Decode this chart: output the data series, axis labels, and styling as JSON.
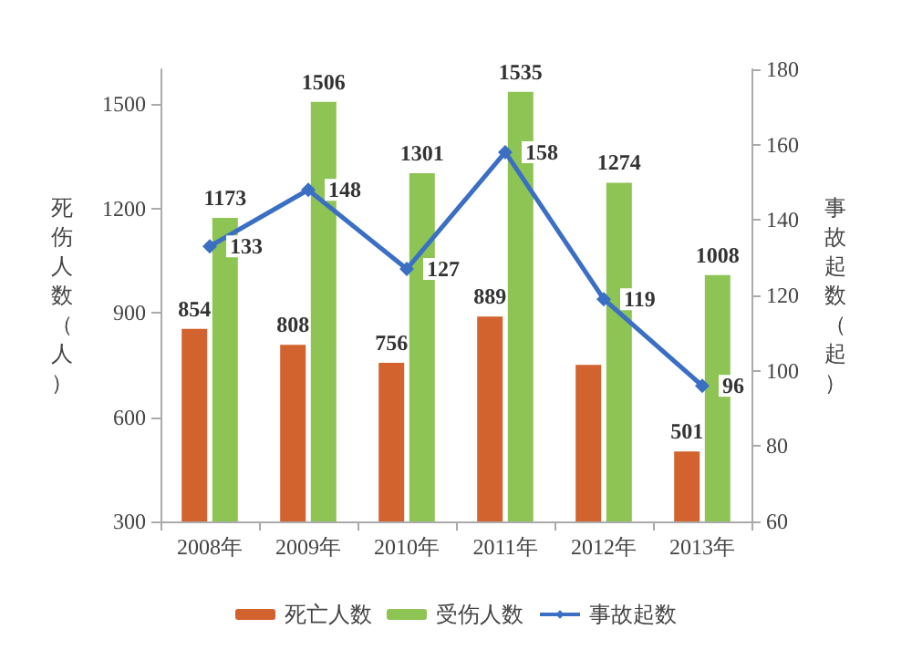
{
  "chart_data": {
    "type": "bar",
    "categories": [
      "2008年",
      "2009年",
      "2010年",
      "2011年",
      "2012年",
      "2013年"
    ],
    "ylabel": "死伤人数（人）",
    "y2label": "事故起数（起）",
    "ylim": [
      300,
      1600
    ],
    "yticks": [
      300,
      600,
      900,
      1200,
      1500
    ],
    "y2lim": [
      60,
      180
    ],
    "y2ticks": [
      60,
      80,
      100,
      120,
      140,
      160,
      180
    ],
    "series": [
      {
        "name": "死亡人数",
        "color": "#d2622e",
        "values": [
          854,
          808,
          756,
          889,
          750,
          501
        ],
        "value_labels": [
          "854",
          "808",
          "756",
          "889",
          null,
          "501"
        ]
      },
      {
        "name": "受伤人数",
        "color": "#8dc454",
        "values": [
          1173,
          1506,
          1301,
          1535,
          1274,
          1008
        ],
        "value_labels": [
          "1173",
          "1506",
          "1301",
          "1535",
          "1274",
          "1008"
        ]
      },
      {
        "name": "事故起数",
        "type": "line",
        "axis": "y2",
        "color": "#3a6fc4",
        "values": [
          133,
          148,
          127,
          158,
          119,
          96
        ],
        "value_labels": [
          "133",
          "148",
          "127",
          "158",
          "119",
          "96"
        ]
      }
    ],
    "marker": "diamond",
    "legend": "bottom",
    "grid": false
  }
}
